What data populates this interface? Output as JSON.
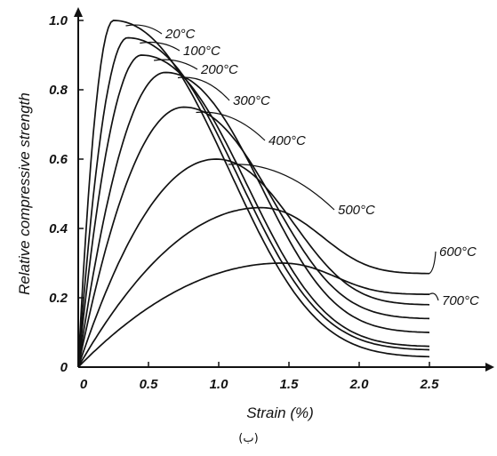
{
  "chart_data": {
    "type": "line",
    "xlabel": "Strain (%)",
    "ylabel": "Relative compressive strength",
    "xlim": [
      0,
      2.5
    ],
    "ylim": [
      0,
      1.0
    ],
    "x_ticks": [
      "0",
      "0.5",
      "1.0",
      "1.5",
      "2.0",
      "2.5"
    ],
    "y_ticks": [
      "0",
      "0.2",
      "0.4",
      "0.6",
      "0.8",
      "1.0"
    ],
    "grid": false,
    "series": [
      {
        "name": "20°C",
        "peak_strain": 0.25,
        "peak_strength": 1.0,
        "end_strength": 0.03
      },
      {
        "name": "100°C",
        "peak_strain": 0.35,
        "peak_strength": 0.95,
        "end_strength": 0.05
      },
      {
        "name": "200°C",
        "peak_strain": 0.45,
        "peak_strength": 0.9,
        "end_strength": 0.06
      },
      {
        "name": "300°C",
        "peak_strain": 0.62,
        "peak_strength": 0.85,
        "end_strength": 0.1
      },
      {
        "name": "400°C",
        "peak_strain": 0.75,
        "peak_strength": 0.75,
        "end_strength": 0.14
      },
      {
        "name": "500°C",
        "peak_strain": 0.98,
        "peak_strength": 0.6,
        "end_strength": 0.18
      },
      {
        "name": "600°C",
        "peak_strain": 1.3,
        "peak_strength": 0.46,
        "end_strength": 0.27
      },
      {
        "name": "700°C",
        "peak_strain": 1.45,
        "peak_strength": 0.3,
        "end_strength": 0.21
      }
    ]
  },
  "caption": "(ب)"
}
